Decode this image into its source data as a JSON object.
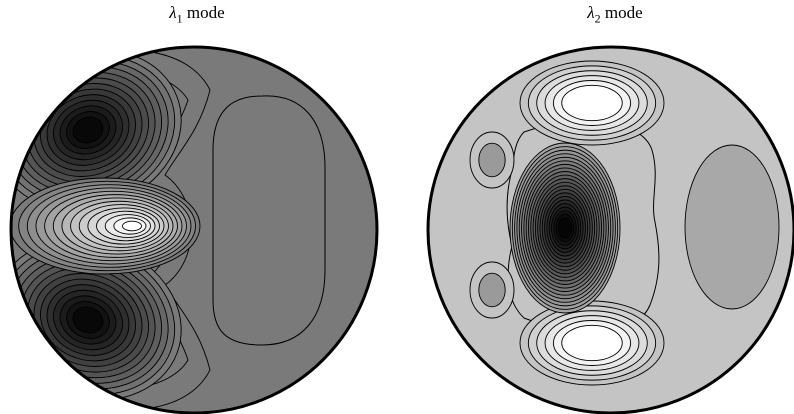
{
  "figure": {
    "panels": [
      {
        "title_symbol": "λ",
        "title_subscript": "1",
        "title_suffix": " mode",
        "background_color": "#7a7a7a",
        "low_color": "#080808",
        "high_color": "#ffffff"
      },
      {
        "title_symbol": "λ",
        "title_subscript": "2",
        "title_suffix": " mode",
        "background_color": "#c4c4c4",
        "low_color": "#050505",
        "high_color": "#ffffff"
      }
    ]
  }
}
